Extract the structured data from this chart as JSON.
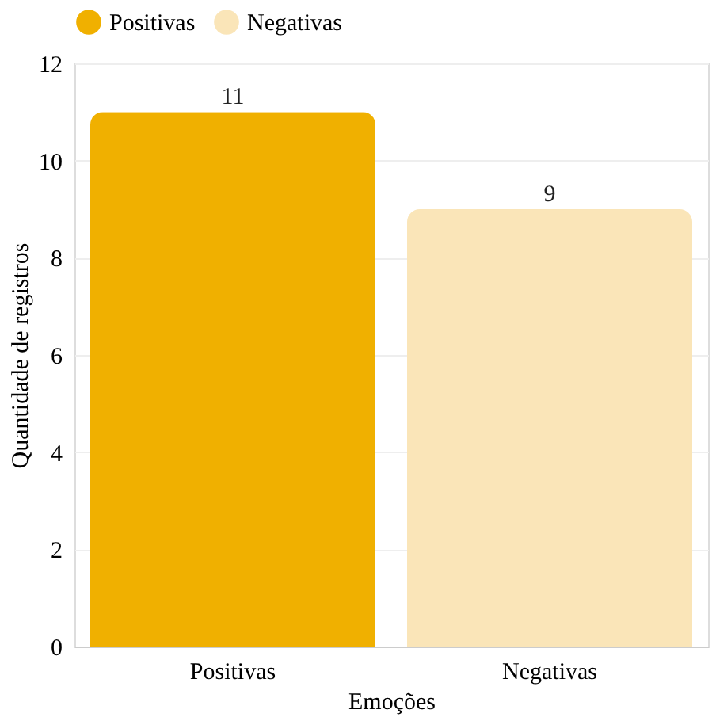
{
  "chart_data": {
    "type": "bar",
    "xlabel": "Emoções",
    "ylabel": "Quantidade de registros",
    "categories": [
      "Positivas",
      "Negativas"
    ],
    "series": [
      {
        "name": "Positivas",
        "color": "#f0b000",
        "values": [
          11,
          null
        ]
      },
      {
        "name": "Negativas",
        "color": "#fae5b8",
        "values": [
          null,
          9
        ]
      }
    ],
    "ylim": [
      0,
      12
    ],
    "yticks": [
      0,
      2,
      4,
      6,
      8,
      10,
      12
    ],
    "grid": "y",
    "legend": "top",
    "data_labels": true
  }
}
